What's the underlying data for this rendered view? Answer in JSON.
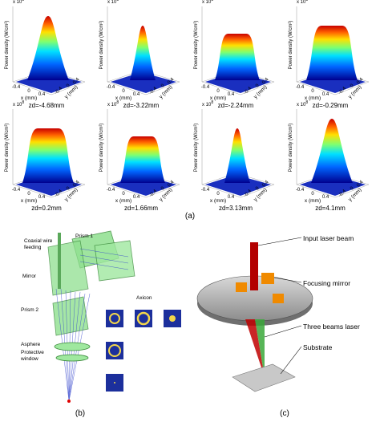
{
  "panel_a": {
    "label": "(a)",
    "exponent": "x 10",
    "exponent_power": "8",
    "axis": {
      "zlabel": "Power density (W/cm²)",
      "xlabel": "x (mm)",
      "ylabel": "y (mm)",
      "tick_neg": "-0.4",
      "tick_zero": "0",
      "tick_pos": "0.4"
    },
    "plots": [
      {
        "caption": "zd=-4.68mm",
        "shape": "gauss"
      },
      {
        "caption": "zd=-3.22mm",
        "shape": "narrow"
      },
      {
        "caption": "zd=-2.24mm",
        "shape": "flattop"
      },
      {
        "caption": "zd=-0.29mm",
        "shape": "flattop-wide"
      },
      {
        "caption": "zd=0.2mm",
        "shape": "flattop-wide"
      },
      {
        "caption": "zd=1.66mm",
        "shape": "flattop"
      },
      {
        "caption": "zd=3.13mm",
        "shape": "narrow"
      },
      {
        "caption": "zd=4.1mm",
        "shape": "gauss"
      }
    ]
  },
  "panel_b": {
    "label": "(b)",
    "labels": [
      "Coaxial wire",
      "feeding",
      "Prism 1",
      "Mirror",
      "Axicon",
      "Prism 2",
      "Asphere",
      "Protective",
      "window"
    ]
  },
  "panel_c": {
    "label": "(c)",
    "labels": [
      "Input laser beam",
      "Focusing mirror",
      "Three beams laser",
      "Substrate"
    ]
  },
  "colors": {
    "peak": "#d40000",
    "base": "#1a2fbf",
    "green_optic": "#7fd67f"
  }
}
